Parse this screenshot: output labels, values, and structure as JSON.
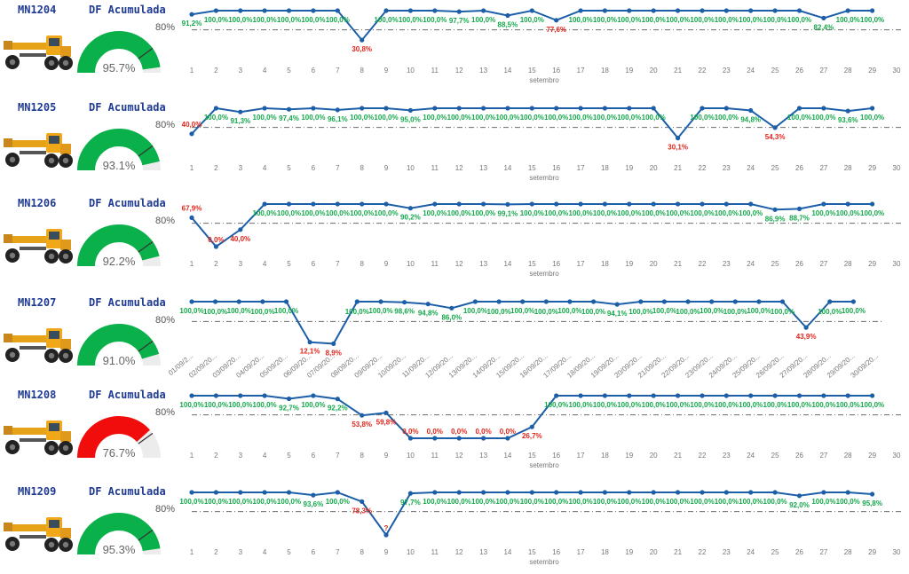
{
  "labels": {
    "df_title": "DF Acumulada",
    "x_axis_title": "setembro"
  },
  "colors": {
    "line": "#1c5fa8",
    "target_line": "#6b6b6b",
    "label_good": "#14a84b",
    "label_bad": "#e1251b",
    "gauge_good": "#0ab04a",
    "gauge_bad": "#f20d0d",
    "gauge_track": "#ececec",
    "title": "#1f3a93"
  },
  "icons": {
    "machine": "motor-grader-icon"
  },
  "machines": [
    {
      "code": "MN1204",
      "gauge": {
        "value": 95.7,
        "value_label": "95.7%",
        "target": 80,
        "target_label": "80%",
        "status": "good"
      }
    },
    {
      "code": "MN1205",
      "gauge": {
        "value": 93.1,
        "value_label": "93.1%",
        "target": 80,
        "target_label": "80%",
        "status": "good"
      }
    },
    {
      "code": "MN1206",
      "gauge": {
        "value": 92.2,
        "value_label": "92.2%",
        "target": 80,
        "target_label": "80%",
        "status": "good"
      }
    },
    {
      "code": "MN1207",
      "gauge": {
        "value": 91.0,
        "value_label": "91.0%",
        "target": 80,
        "target_label": "80%",
        "status": "good"
      }
    },
    {
      "code": "MN1208",
      "gauge": {
        "value": 76.7,
        "value_label": "76.7%",
        "target": 80,
        "target_label": "80%",
        "status": "bad"
      }
    },
    {
      "code": "MN1209",
      "gauge": {
        "value": 95.3,
        "value_label": "95.3%",
        "target": 80,
        "target_label": "80%",
        "status": "good"
      }
    }
  ],
  "chart_data": [
    {
      "type": "line",
      "machine": "MN1204",
      "xlabel": "setembro",
      "target": 80,
      "xlim": [
        1,
        30
      ],
      "ylim": [
        0,
        100
      ],
      "x_ticks": [
        "1",
        "2",
        "3",
        "4",
        "5",
        "6",
        "7",
        "8",
        "9",
        "10",
        "11",
        "12",
        "13",
        "14",
        "15",
        "16",
        "17",
        "18",
        "19",
        "20",
        "21",
        "22",
        "23",
        "24",
        "25",
        "26",
        "27",
        "28",
        "29",
        "30"
      ],
      "x": [
        1,
        2,
        3,
        4,
        5,
        6,
        7,
        8,
        9,
        10,
        11,
        12,
        13,
        14,
        15,
        16,
        17,
        18,
        19,
        20,
        21,
        22,
        23,
        24,
        25,
        26,
        27,
        28,
        29
      ],
      "y": [
        91.2,
        100,
        100,
        100,
        100,
        100,
        100,
        30.8,
        100,
        100,
        100,
        97.7,
        100,
        88.5,
        100,
        77.6,
        100,
        100,
        100,
        100,
        100,
        100,
        100,
        100,
        100,
        100,
        82.4,
        100,
        100
      ],
      "point_labels": [
        "91,2%",
        "100,0%",
        "100,0%",
        "100,0%",
        "100,0%",
        "100,0%",
        "100,0%",
        "30,8%",
        "100,0%",
        "100,0%",
        "100,0%",
        "97,7%",
        "100,0%",
        "88,5%",
        "100,0%",
        "77,6%",
        "100,0%",
        "100,0%",
        "100,0%",
        "100,0%",
        "100,0%",
        "100,0%",
        "100,0%",
        "100,0%",
        "100,0%",
        "100,0%",
        "82,4%",
        "100,0%",
        "100,0%"
      ]
    },
    {
      "type": "line",
      "machine": "MN1205",
      "xlabel": "setembro",
      "target": 80,
      "xlim": [
        1,
        30
      ],
      "ylim": [
        0,
        100
      ],
      "x_ticks": [
        "1",
        "2",
        "3",
        "4",
        "5",
        "6",
        "7",
        "8",
        "9",
        "10",
        "11",
        "12",
        "13",
        "14",
        "15",
        "16",
        "17",
        "18",
        "19",
        "20",
        "21",
        "22",
        "23",
        "24",
        "25",
        "26",
        "27",
        "28",
        "29",
        "30"
      ],
      "x": [
        1,
        2,
        3,
        4,
        5,
        6,
        7,
        8,
        9,
        10,
        11,
        12,
        13,
        14,
        15,
        16,
        17,
        18,
        19,
        20,
        21,
        22,
        23,
        24,
        25,
        26,
        27,
        28,
        29
      ],
      "y": [
        40,
        100,
        91.3,
        100,
        97.4,
        100,
        96.1,
        100,
        100,
        95,
        100,
        100,
        100,
        100,
        100,
        100,
        100,
        100,
        100,
        100,
        30.1,
        100,
        100,
        94.8,
        54.3,
        100,
        100,
        93.6,
        100
      ],
      "point_labels": [
        "40,0%",
        "100,0%",
        "91,3%",
        "100,0%",
        "97,4%",
        "100,0%",
        "96,1%",
        "100,0%",
        "100,0%",
        "95,0%",
        "100,0%",
        "100,0%",
        "100,0%",
        "100,0%",
        "100,0%",
        "100,0%",
        "100,0%",
        "100,0%",
        "100,0%",
        "100,0%",
        "30,1%",
        "100,0%",
        "100,0%",
        "94,8%",
        "54,3%",
        "100,0%",
        "100,0%",
        "93,6%",
        "100,0%"
      ]
    },
    {
      "type": "line",
      "machine": "MN1206",
      "xlabel": "setembro",
      "target": 80,
      "xlim": [
        1,
        30
      ],
      "ylim": [
        0,
        100
      ],
      "x_ticks": [
        "1",
        "2",
        "3",
        "4",
        "5",
        "6",
        "7",
        "8",
        "9",
        "10",
        "11",
        "12",
        "13",
        "14",
        "15",
        "16",
        "17",
        "18",
        "19",
        "20",
        "21",
        "22",
        "23",
        "24",
        "25",
        "26",
        "27",
        "28",
        "29",
        "30"
      ],
      "x": [
        1,
        2,
        3,
        4,
        5,
        6,
        7,
        8,
        9,
        10,
        11,
        12,
        13,
        14,
        15,
        16,
        17,
        18,
        19,
        20,
        21,
        22,
        23,
        24,
        25,
        26,
        27,
        28,
        29
      ],
      "y": [
        67.9,
        0,
        40,
        100,
        100,
        100,
        100,
        100,
        100,
        90.2,
        100,
        100,
        100,
        99.1,
        100,
        100,
        100,
        100,
        100,
        100,
        100,
        100,
        100,
        100,
        86.9,
        88.7,
        100,
        100,
        100
      ],
      "point_labels": [
        "67,9%",
        "0,0%",
        "40,0%",
        "100,0%",
        "100,0%",
        "100,0%",
        "100,0%",
        "100,0%",
        "100,0%",
        "90,2%",
        "100,0%",
        "100,0%",
        "100,0%",
        "99,1%",
        "100,0%",
        "100,0%",
        "100,0%",
        "100,0%",
        "100,0%",
        "100,0%",
        "100,0%",
        "100,0%",
        "100,0%",
        "100,0%",
        "86,9%",
        "88,7%",
        "100,0%",
        "100,0%",
        "100,0%"
      ]
    },
    {
      "type": "line",
      "machine": "MN1207",
      "target": 80,
      "xlim": [
        1,
        30
      ],
      "ylim": [
        0,
        100
      ],
      "x_ticks": [
        "01/09/2...",
        "02/09/20...",
        "03/09/20...",
        "04/09/20...",
        "05/09/20...",
        "06/09/20...",
        "07/09/20...",
        "08/09/20...",
        "09/09/20...",
        "10/09/20...",
        "11/09/20...",
        "12/09/20...",
        "13/09/20...",
        "14/09/20...",
        "15/09/20...",
        "16/09/20...",
        "17/09/20...",
        "18/09/20...",
        "19/09/20...",
        "20/09/20...",
        "21/09/20...",
        "22/09/20...",
        "23/09/20...",
        "24/09/20...",
        "25/09/20...",
        "26/09/20...",
        "27/09/20...",
        "28/09/20...",
        "29/09/20...",
        "30/09/20..."
      ],
      "x": [
        1,
        2,
        3,
        4,
        5,
        6,
        7,
        8,
        9,
        10,
        11,
        12,
        13,
        14,
        15,
        16,
        17,
        18,
        19,
        20,
        21,
        22,
        23,
        24,
        25,
        26,
        27,
        28,
        29
      ],
      "y": [
        100,
        100,
        100,
        100,
        100,
        12.1,
        8.9,
        100,
        100,
        98.6,
        94.8,
        86,
        100,
        100,
        100,
        100,
        100,
        100,
        94.1,
        100,
        100,
        100,
        100,
        100,
        100,
        100,
        43.9,
        100,
        100
      ],
      "point_labels": [
        "100,0%",
        "100,0%",
        "100,0%",
        "100,0%",
        "100,0%",
        "12,1%",
        "8,9%",
        "100,0%",
        "100,0%",
        "98,6%",
        "94,8%",
        "86,0%",
        "100,0%",
        "100,0%",
        "100,0%",
        "100,0%",
        "100,0%",
        "100,0%",
        "94,1%",
        "100,0%",
        "100,0%",
        "100,0%",
        "100,0%",
        "100,0%",
        "100,0%",
        "100,0%",
        "43,9%",
        "100,0%",
        "100,0%"
      ]
    },
    {
      "type": "line",
      "machine": "MN1208",
      "xlabel": "setembro",
      "target": 80,
      "xlim": [
        1,
        30
      ],
      "ylim": [
        0,
        100
      ],
      "x_ticks": [
        "1",
        "2",
        "3",
        "4",
        "5",
        "6",
        "7",
        "8",
        "9",
        "10",
        "11",
        "12",
        "13",
        "14",
        "15",
        "16",
        "17",
        "18",
        "19",
        "20",
        "21",
        "22",
        "23",
        "24",
        "25",
        "26",
        "27",
        "28",
        "29",
        "30"
      ],
      "x": [
        1,
        2,
        3,
        4,
        5,
        6,
        7,
        8,
        9,
        10,
        11,
        12,
        13,
        14,
        15,
        16,
        17,
        18,
        19,
        20,
        21,
        22,
        23,
        24,
        25,
        26,
        27,
        28,
        29
      ],
      "y": [
        100,
        100,
        100,
        100,
        92.7,
        100,
        92.2,
        53.8,
        59.8,
        0,
        0,
        0,
        0,
        0,
        26.7,
        100,
        100,
        100,
        100,
        100,
        100,
        100,
        100,
        100,
        100,
        100,
        100,
        100,
        100
      ],
      "point_labels": [
        "100,0%",
        "100,0%",
        "100,0%",
        "100,0%",
        "92,7%",
        "100,0%",
        "92,2%",
        "53,8%",
        "59,8%",
        "0,0%",
        "0,0%",
        "0,0%",
        "0,0%",
        "0,0%",
        "26,7%",
        "100,0%",
        "100,0%",
        "100,0%",
        "100,0%",
        "100,0%",
        "100,0%",
        "100,0%",
        "100,0%",
        "100,0%",
        "100,0%",
        "100,0%",
        "100,0%",
        "100,0%",
        "100,0%"
      ]
    },
    {
      "type": "line",
      "machine": "MN1209",
      "xlabel": "setembro",
      "target": 80,
      "xlim": [
        1,
        30
      ],
      "ylim": [
        0,
        100
      ],
      "x_ticks": [
        "1",
        "2",
        "3",
        "4",
        "5",
        "6",
        "7",
        "8",
        "9",
        "10",
        "11",
        "12",
        "13",
        "14",
        "15",
        "16",
        "17",
        "18",
        "19",
        "20",
        "21",
        "22",
        "23",
        "24",
        "25",
        "26",
        "27",
        "28",
        "29",
        "30"
      ],
      "x": [
        1,
        2,
        3,
        4,
        5,
        6,
        7,
        8,
        9,
        10,
        11,
        12,
        13,
        14,
        15,
        16,
        17,
        18,
        19,
        20,
        21,
        22,
        23,
        24,
        25,
        26,
        27,
        28,
        29
      ],
      "y": [
        100,
        100,
        100,
        100,
        100,
        93.6,
        100,
        78.3,
        0,
        97.7,
        100,
        100,
        100,
        100,
        100,
        100,
        100,
        100,
        100,
        100,
        100,
        100,
        100,
        100,
        100,
        92,
        100,
        100,
        95.8
      ],
      "point_labels": [
        "100,0%",
        "100,0%",
        "100,0%",
        "100,0%",
        "100,0%",
        "93,6%",
        "100,0%",
        "78,3%",
        "?",
        "97,7%",
        "100,0%",
        "100,0%",
        "100,0%",
        "100,0%",
        "100,0%",
        "100,0%",
        "100,0%",
        "100,0%",
        "100,0%",
        "100,0%",
        "100,0%",
        "100,0%",
        "100,0%",
        "100,0%",
        "100,0%",
        "92,0%",
        "100,0%",
        "100,0%",
        "95,8%"
      ]
    }
  ]
}
